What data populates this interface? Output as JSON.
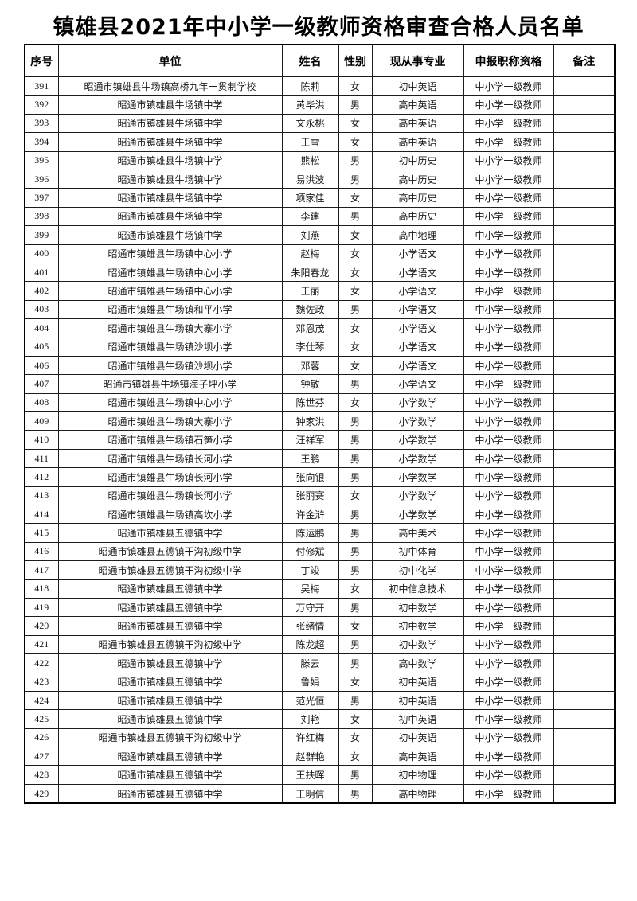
{
  "page": {
    "title": "镇雄县2021年中小学一级教师资格审查合格人员名单"
  },
  "table": {
    "columns": {
      "no": "序号",
      "unit": "单位",
      "name": "姓名",
      "gender": "性别",
      "subject": "现从事专业",
      "qualification": "申报职称资格",
      "remark": "备注"
    },
    "rows": [
      {
        "no": "391",
        "unit": "昭通市镇雄县牛场镇高桥九年一贯制学校",
        "name": "陈莉",
        "gender": "女",
        "subject": "初中英语",
        "qualification": "中小学一级教师",
        "remark": ""
      },
      {
        "no": "392",
        "unit": "昭通市镇雄县牛场镇中学",
        "name": "黄毕洪",
        "gender": "男",
        "subject": "高中英语",
        "qualification": "中小学一级教师",
        "remark": ""
      },
      {
        "no": "393",
        "unit": "昭通市镇雄县牛场镇中学",
        "name": "文永桃",
        "gender": "女",
        "subject": "高中英语",
        "qualification": "中小学一级教师",
        "remark": ""
      },
      {
        "no": "394",
        "unit": "昭通市镇雄县牛场镇中学",
        "name": "王雪",
        "gender": "女",
        "subject": "高中英语",
        "qualification": "中小学一级教师",
        "remark": ""
      },
      {
        "no": "395",
        "unit": "昭通市镇雄县牛场镇中学",
        "name": "熊松",
        "gender": "男",
        "subject": "初中历史",
        "qualification": "中小学一级教师",
        "remark": ""
      },
      {
        "no": "396",
        "unit": "昭通市镇雄县牛场镇中学",
        "name": "易洪波",
        "gender": "男",
        "subject": "高中历史",
        "qualification": "中小学一级教师",
        "remark": ""
      },
      {
        "no": "397",
        "unit": "昭通市镇雄县牛场镇中学",
        "name": "项家佳",
        "gender": "女",
        "subject": "高中历史",
        "qualification": "中小学一级教师",
        "remark": ""
      },
      {
        "no": "398",
        "unit": "昭通市镇雄县牛场镇中学",
        "name": "李建",
        "gender": "男",
        "subject": "高中历史",
        "qualification": "中小学一级教师",
        "remark": ""
      },
      {
        "no": "399",
        "unit": "昭通市镇雄县牛场镇中学",
        "name": "刘燕",
        "gender": "女",
        "subject": "高中地理",
        "qualification": "中小学一级教师",
        "remark": ""
      },
      {
        "no": "400",
        "unit": "昭通市镇雄县牛场镇中心小学",
        "name": "赵梅",
        "gender": "女",
        "subject": "小学语文",
        "qualification": "中小学一级教师",
        "remark": ""
      },
      {
        "no": "401",
        "unit": "昭通市镇雄县牛场镇中心小学",
        "name": "朱阳春龙",
        "gender": "女",
        "subject": "小学语文",
        "qualification": "中小学一级教师",
        "remark": ""
      },
      {
        "no": "402",
        "unit": "昭通市镇雄县牛场镇中心小学",
        "name": "王丽",
        "gender": "女",
        "subject": "小学语文",
        "qualification": "中小学一级教师",
        "remark": ""
      },
      {
        "no": "403",
        "unit": "昭通市镇雄县牛场镇和平小学",
        "name": "魏佐政",
        "gender": "男",
        "subject": "小学语文",
        "qualification": "中小学一级教师",
        "remark": ""
      },
      {
        "no": "404",
        "unit": "昭通市镇雄县牛场镇大寨小学",
        "name": "邓恩茂",
        "gender": "女",
        "subject": "小学语文",
        "qualification": "中小学一级教师",
        "remark": ""
      },
      {
        "no": "405",
        "unit": "昭通市镇雄县牛场镇沙坝小学",
        "name": "李仕琴",
        "gender": "女",
        "subject": "小学语文",
        "qualification": "中小学一级教师",
        "remark": ""
      },
      {
        "no": "406",
        "unit": "昭通市镇雄县牛场镇沙坝小学",
        "name": "邓蓉",
        "gender": "女",
        "subject": "小学语文",
        "qualification": "中小学一级教师",
        "remark": ""
      },
      {
        "no": "407",
        "unit": "昭通市镇雄县牛场镇海子坪小学",
        "name": "钟敏",
        "gender": "男",
        "subject": "小学语文",
        "qualification": "中小学一级教师",
        "remark": ""
      },
      {
        "no": "408",
        "unit": "昭通市镇雄县牛场镇中心小学",
        "name": "陈世芬",
        "gender": "女",
        "subject": "小学数学",
        "qualification": "中小学一级教师",
        "remark": ""
      },
      {
        "no": "409",
        "unit": "昭通市镇雄县牛场镇大寨小学",
        "name": "钟家洪",
        "gender": "男",
        "subject": "小学数学",
        "qualification": "中小学一级教师",
        "remark": ""
      },
      {
        "no": "410",
        "unit": "昭通市镇雄县牛场镇石笋小学",
        "name": "汪祥军",
        "gender": "男",
        "subject": "小学数学",
        "qualification": "中小学一级教师",
        "remark": ""
      },
      {
        "no": "411",
        "unit": "昭通市镇雄县牛场镇长河小学",
        "name": "王鹏",
        "gender": "男",
        "subject": "小学数学",
        "qualification": "中小学一级教师",
        "remark": ""
      },
      {
        "no": "412",
        "unit": "昭通市镇雄县牛场镇长河小学",
        "name": "张向银",
        "gender": "男",
        "subject": "小学数学",
        "qualification": "中小学一级教师",
        "remark": ""
      },
      {
        "no": "413",
        "unit": "昭通市镇雄县牛场镇长河小学",
        "name": "张丽赛",
        "gender": "女",
        "subject": "小学数学",
        "qualification": "中小学一级教师",
        "remark": ""
      },
      {
        "no": "414",
        "unit": "昭通市镇雄县牛场镇高坎小学",
        "name": "许金浒",
        "gender": "男",
        "subject": "小学数学",
        "qualification": "中小学一级教师",
        "remark": ""
      },
      {
        "no": "415",
        "unit": "昭通市镇雄县五德镇中学",
        "name": "陈运鹏",
        "gender": "男",
        "subject": "高中美术",
        "qualification": "中小学一级教师",
        "remark": ""
      },
      {
        "no": "416",
        "unit": "昭通市镇雄县五德镇干沟初级中学",
        "name": "付修斌",
        "gender": "男",
        "subject": "初中体育",
        "qualification": "中小学一级教师",
        "remark": ""
      },
      {
        "no": "417",
        "unit": "昭通市镇雄县五德镇干沟初级中学",
        "name": "丁竣",
        "gender": "男",
        "subject": "初中化学",
        "qualification": "中小学一级教师",
        "remark": ""
      },
      {
        "no": "418",
        "unit": "昭通市镇雄县五德镇中学",
        "name": "吴梅",
        "gender": "女",
        "subject": "初中信息技术",
        "qualification": "中小学一级教师",
        "remark": ""
      },
      {
        "no": "419",
        "unit": "昭通市镇雄县五德镇中学",
        "name": "万守开",
        "gender": "男",
        "subject": "初中数学",
        "qualification": "中小学一级教师",
        "remark": ""
      },
      {
        "no": "420",
        "unit": "昭通市镇雄县五德镇中学",
        "name": "张绪情",
        "gender": "女",
        "subject": "初中数学",
        "qualification": "中小学一级教师",
        "remark": ""
      },
      {
        "no": "421",
        "unit": "昭通市镇雄县五德镇干沟初级中学",
        "name": "陈龙超",
        "gender": "男",
        "subject": "初中数学",
        "qualification": "中小学一级教师",
        "remark": ""
      },
      {
        "no": "422",
        "unit": "昭通市镇雄县五德镇中学",
        "name": "滕云",
        "gender": "男",
        "subject": "高中数学",
        "qualification": "中小学一级教师",
        "remark": ""
      },
      {
        "no": "423",
        "unit": "昭通市镇雄县五德镇中学",
        "name": "鲁娟",
        "gender": "女",
        "subject": "初中英语",
        "qualification": "中小学一级教师",
        "remark": ""
      },
      {
        "no": "424",
        "unit": "昭通市镇雄县五德镇中学",
        "name": "范光恒",
        "gender": "男",
        "subject": "初中英语",
        "qualification": "中小学一级教师",
        "remark": ""
      },
      {
        "no": "425",
        "unit": "昭通市镇雄县五德镇中学",
        "name": "刘艳",
        "gender": "女",
        "subject": "初中英语",
        "qualification": "中小学一级教师",
        "remark": ""
      },
      {
        "no": "426",
        "unit": "昭通市镇雄县五德镇干沟初级中学",
        "name": "许红梅",
        "gender": "女",
        "subject": "初中英语",
        "qualification": "中小学一级教师",
        "remark": ""
      },
      {
        "no": "427",
        "unit": "昭通市镇雄县五德镇中学",
        "name": "赵群艳",
        "gender": "女",
        "subject": "高中英语",
        "qualification": "中小学一级教师",
        "remark": ""
      },
      {
        "no": "428",
        "unit": "昭通市镇雄县五德镇中学",
        "name": "王扶晖",
        "gender": "男",
        "subject": "初中物理",
        "qualification": "中小学一级教师",
        "remark": ""
      },
      {
        "no": "429",
        "unit": "昭通市镇雄县五德镇中学",
        "name": "王明信",
        "gender": "男",
        "subject": "高中物理",
        "qualification": "中小学一级教师",
        "remark": ""
      }
    ]
  }
}
